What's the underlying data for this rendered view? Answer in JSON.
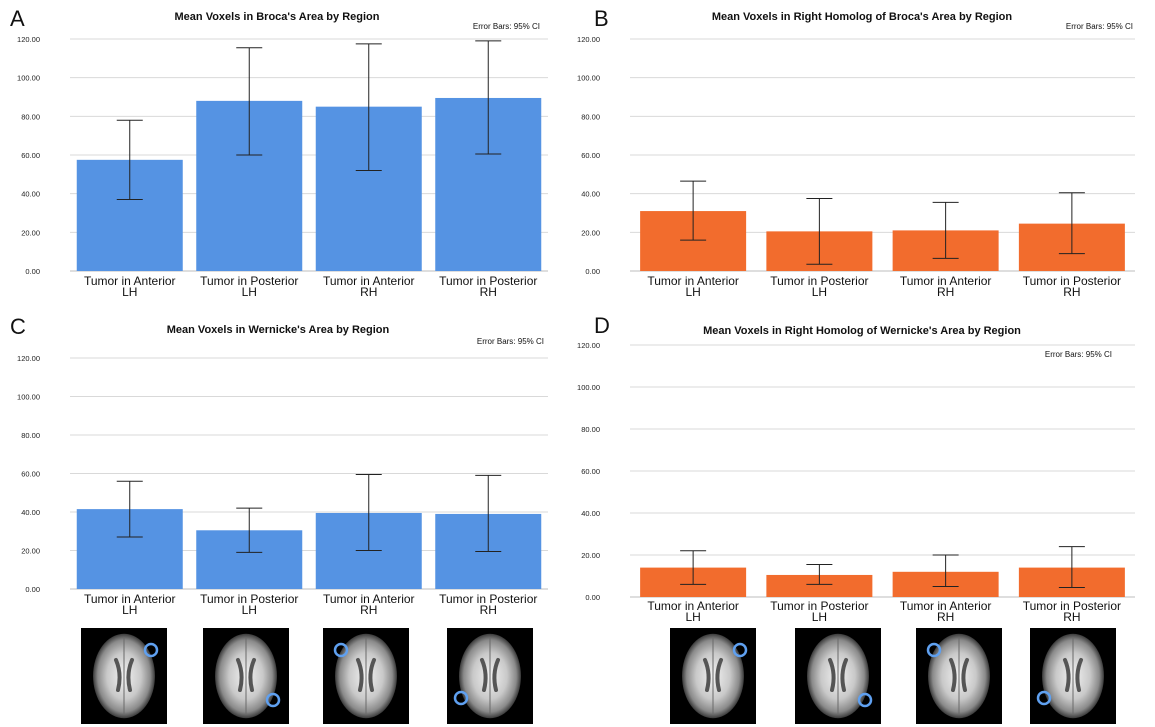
{
  "chart_data": [
    {
      "panel": "A",
      "type": "bar",
      "title": "Mean Voxels in Broca's Area by Region",
      "annotation": "Error Bars: 95% CI",
      "categories": [
        [
          "Tumor in Anterior",
          "LH"
        ],
        [
          "Tumor in Posterior",
          "LH"
        ],
        [
          "Tumor in Anterior",
          "RH"
        ],
        [
          "Tumor in Posterior",
          "RH"
        ]
      ],
      "values": [
        57.5,
        88.0,
        85.0,
        89.5
      ],
      "error_low": [
        37.0,
        60.0,
        52.0,
        60.5
      ],
      "error_high": [
        78.0,
        115.5,
        117.5,
        119.0
      ],
      "ylim": [
        0,
        120
      ],
      "yticks": [
        "0.00",
        "20.00",
        "40.00",
        "60.00",
        "80.00",
        "100.00",
        "120.00"
      ],
      "color": "#5593e3",
      "grid": true
    },
    {
      "panel": "B",
      "type": "bar",
      "title": "Mean Voxels in Right Homolog of Broca's Area by Region",
      "annotation": "Error Bars: 95% CI",
      "categories": [
        [
          "Tumor in Anterior",
          "LH"
        ],
        [
          "Tumor in Posterior",
          "LH"
        ],
        [
          "Tumor in Anterior",
          "RH"
        ],
        [
          "Tumor in Posterior",
          "RH"
        ]
      ],
      "values": [
        31.0,
        20.5,
        21.0,
        24.5
      ],
      "error_low": [
        16.0,
        3.5,
        6.5,
        9.0
      ],
      "error_high": [
        46.5,
        37.5,
        35.5,
        40.5
      ],
      "ylim": [
        0,
        120
      ],
      "yticks": [
        "0.00",
        "20.00",
        "40.00",
        "60.00",
        "80.00",
        "100.00",
        "120.00"
      ],
      "color": "#f26c2d",
      "grid": true
    },
    {
      "panel": "C",
      "type": "bar",
      "title": "Mean Voxels in Wernicke's Area by Region",
      "annotation": "Error Bars: 95% CI",
      "categories": [
        [
          "Tumor in Anterior",
          "LH"
        ],
        [
          "Tumor in Posterior",
          "LH"
        ],
        [
          "Tumor in Anterior",
          "RH"
        ],
        [
          "Tumor in Posterior",
          "RH"
        ]
      ],
      "values": [
        41.5,
        30.5,
        39.5,
        39.0
      ],
      "error_low": [
        27.0,
        19.0,
        20.0,
        19.5
      ],
      "error_high": [
        56.0,
        42.0,
        59.5,
        59.0
      ],
      "ylim": [
        0,
        120
      ],
      "yticks": [
        "0.00",
        "20.00",
        "40.00",
        "60.00",
        "80.00",
        "100.00",
        "120.00"
      ],
      "color": "#5593e3",
      "grid": true
    },
    {
      "panel": "D",
      "type": "bar",
      "title": "Mean Voxels in Right Homolog of Wernicke's Area by Region",
      "annotation": "Error Bars: 95% CI",
      "categories": [
        [
          "Tumor in Anterior",
          "LH"
        ],
        [
          "Tumor in Posterior",
          "LH"
        ],
        [
          "Tumor in Anterior",
          "RH"
        ],
        [
          "Tumor in Posterior",
          "RH"
        ]
      ],
      "values": [
        14.0,
        10.5,
        12.0,
        14.0
      ],
      "error_low": [
        6.0,
        6.0,
        5.0,
        4.5
      ],
      "error_high": [
        22.0,
        15.5,
        20.0,
        24.0
      ],
      "ylim": [
        0,
        120
      ],
      "yticks": [
        "0.00",
        "20.00",
        "40.00",
        "60.00",
        "80.00",
        "100.00",
        "120.00"
      ],
      "color": "#f26c2d",
      "grid": true
    }
  ],
  "brain_thumbnails": {
    "description": "axial MRI thumbnails with circled tumor location, one per category",
    "marker_color": "#5fa0f0"
  }
}
